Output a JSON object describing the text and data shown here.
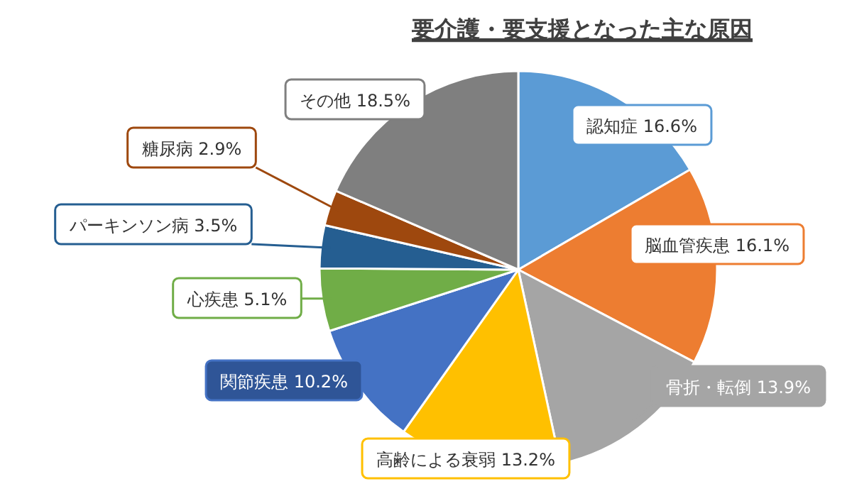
{
  "chart_data": {
    "type": "pie",
    "title": "要介護・要支援となった主な原因",
    "categories": [
      "認知症",
      "脳血管疾患",
      "骨折・転倒",
      "高齢による衰弱",
      "関節疾患",
      "心疾患",
      "パーキンソン病",
      "糖尿病",
      "その他"
    ],
    "values": [
      16.6,
      16.1,
      13.9,
      13.2,
      10.2,
      5.1,
      3.5,
      2.9,
      18.5
    ],
    "value_labels": [
      "16.6%",
      "16.1%",
      "13.9%",
      "13.2%",
      "10.2%",
      "5.1%",
      "3.5%",
      "2.9%",
      "18.5%"
    ],
    "colors": [
      "#5b9bd5",
      "#ed7d31",
      "#a5a5a5",
      "#ffc000",
      "#4472c4",
      "#70ad47",
      "#255e91",
      "#9e480e",
      "#7f7f7f"
    ]
  }
}
